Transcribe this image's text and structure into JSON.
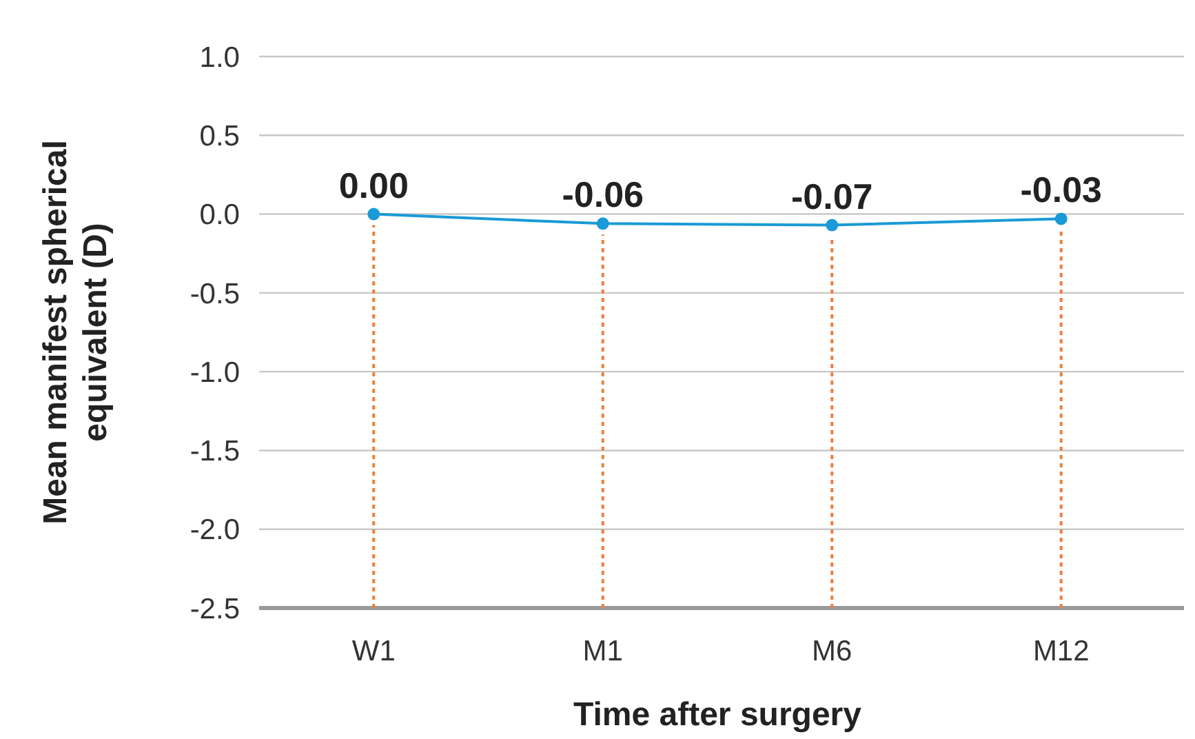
{
  "chart_data": {
    "type": "line",
    "xlabel": "Time after surgery",
    "ylabel": "Mean manifest spherical equivalent (D)",
    "categories": [
      "W1",
      "M1",
      "M6",
      "M12"
    ],
    "series": [
      {
        "color": "#1a9ad6",
        "values": [
          0,
          -0.06,
          -0.07,
          -0.03
        ]
      }
    ],
    "value_labels": [
      "0.00",
      "-0.06",
      "-0.07",
      "-0.03"
    ],
    "ylim": [
      -2.5,
      1.0
    ],
    "yticks": [
      {
        "value": -2.5,
        "label": "-2.5"
      },
      {
        "value": -2,
        "label": "-2.0"
      },
      {
        "value": -1.5,
        "label": "-1.5"
      },
      {
        "value": -1,
        "label": "-1.0"
      },
      {
        "value": -0.5,
        "label": "-0.5"
      },
      {
        "value": 0,
        "label": "0.0"
      },
      {
        "value": 0.5,
        "label": "0.5"
      },
      {
        "value": 1,
        "label": "1.0"
      }
    ],
    "grid": "y",
    "marker": "circle",
    "line_style": "solid",
    "ref_lines": [
      {
        "axis": "x",
        "value": "W1",
        "color": "#f07f3c",
        "line_style": "dotted"
      },
      {
        "axis": "x",
        "value": "M1",
        "color": "#f07f3c",
        "line_style": "dotted"
      },
      {
        "axis": "x",
        "value": "M6",
        "color": "#f07f3c",
        "line_style": "dotted"
      },
      {
        "axis": "x",
        "value": "M12",
        "color": "#f07f3c",
        "line_style": "dotted"
      }
    ]
  }
}
